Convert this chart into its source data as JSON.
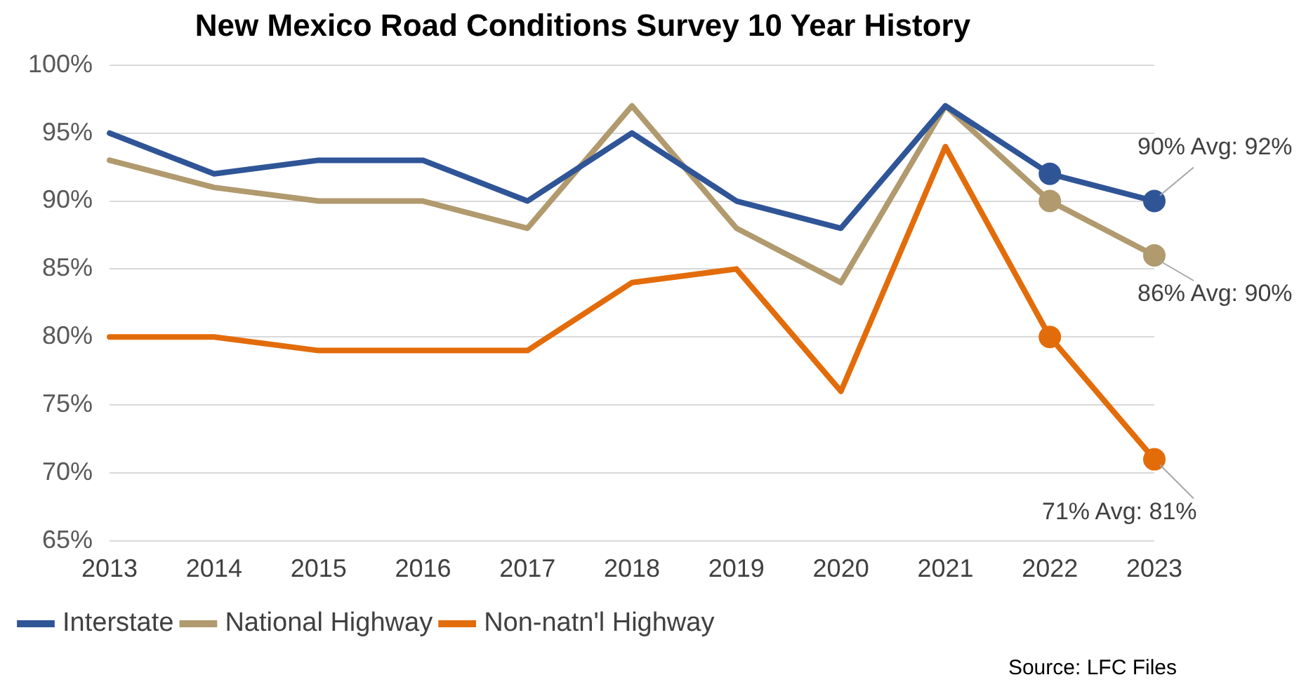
{
  "chart_data": {
    "type": "line",
    "title": "New Mexico Road Conditions Survey 10 Year History",
    "categories": [
      "2013",
      "2014",
      "2015",
      "2016",
      "2017",
      "2018",
      "2019",
      "2020",
      "2021",
      "2022",
      "2023"
    ],
    "series": [
      {
        "name": "Interstate",
        "color": "#2f5597",
        "values": [
          95,
          92,
          93,
          93,
          90,
          95,
          90,
          88,
          97,
          92,
          90
        ]
      },
      {
        "name": "National Highway",
        "color": "#b09a6e",
        "values": [
          93,
          91,
          90,
          90,
          88,
          97,
          88,
          84,
          97,
          90,
          86
        ]
      },
      {
        "name": "Non-natn'l Highway",
        "color": "#e36c0a",
        "values": [
          80,
          80,
          79,
          79,
          79,
          84,
          85,
          76,
          94,
          80,
          71
        ]
      }
    ],
    "ylim": [
      65,
      100
    ],
    "yticks": [
      {
        "value": 65,
        "label": "65%"
      },
      {
        "value": 70,
        "label": "70%"
      },
      {
        "value": 75,
        "label": "75%"
      },
      {
        "value": 80,
        "label": "80%"
      },
      {
        "value": 85,
        "label": "85%"
      },
      {
        "value": 90,
        "label": "90%"
      },
      {
        "value": 95,
        "label": "95%"
      },
      {
        "value": 100,
        "label": "100%"
      }
    ],
    "grid": "y",
    "legend": "bottom",
    "line_style": "solid",
    "annotations": [
      {
        "text": "90% Avg: 92%",
        "x": "2023",
        "y": 90
      },
      {
        "text": "86% Avg: 90%",
        "x": "2023",
        "y": 86
      },
      {
        "text": "71% Avg: 81%",
        "x": "2023",
        "y": 71
      },
      "Source: LFC Files"
    ]
  }
}
